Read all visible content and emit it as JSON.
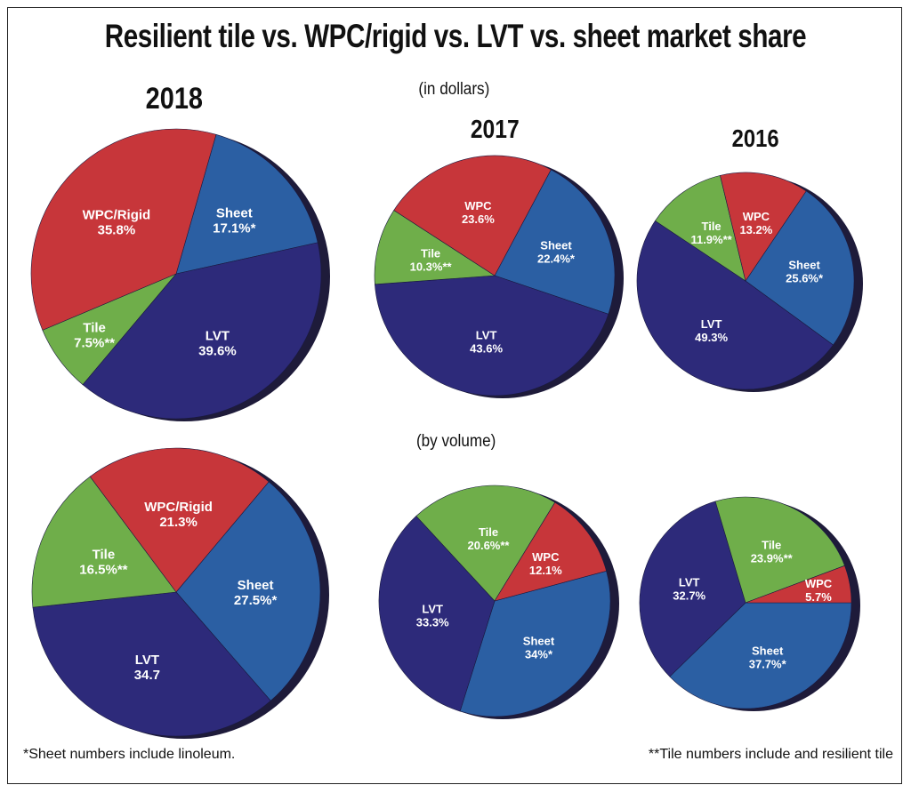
{
  "title": "Resilient tile vs. WPC/rigid vs. LVT vs. sheet market share",
  "subtitle_dollars": "(in dollars)",
  "subtitle_volume": "(by volume)",
  "years": [
    "2018",
    "2017",
    "2016"
  ],
  "footnote_sheet": "*Sheet numbers include linoleum.",
  "footnote_tile": "**Tile numbers include and resilient tile",
  "colors": {
    "Sheet": "#2b5fa3",
    "LVT": "#2d2a7a",
    "Tile": "#6fae4a",
    "WPC": "#c7363a",
    "shadow": "#1e1b3a"
  },
  "chart_data": [
    {
      "type": "pie",
      "group": "(in dollars)",
      "year": "2018",
      "slices": [
        {
          "label": "Sheet",
          "value_text": "17.1%*",
          "value": 17.1,
          "color_key": "Sheet"
        },
        {
          "label": "LVT",
          "value_text": "39.6%",
          "value": 39.6,
          "color_key": "LVT"
        },
        {
          "label": "Tile",
          "value_text": "7.5%**",
          "value": 7.5,
          "color_key": "Tile"
        },
        {
          "label": "WPC/Rigid",
          "value_text": "35.8%",
          "value": 35.8,
          "color_key": "WPC"
        }
      ]
    },
    {
      "type": "pie",
      "group": "(in dollars)",
      "year": "2017",
      "slices": [
        {
          "label": "Sheet",
          "value_text": "22.4%*",
          "value": 22.4,
          "color_key": "Sheet"
        },
        {
          "label": "LVT",
          "value_text": "43.6%",
          "value": 43.6,
          "color_key": "LVT"
        },
        {
          "label": "Tile",
          "value_text": "10.3%**",
          "value": 10.3,
          "color_key": "Tile"
        },
        {
          "label": "WPC",
          "value_text": "23.6%",
          "value": 23.6,
          "color_key": "WPC"
        }
      ]
    },
    {
      "type": "pie",
      "group": "(in dollars)",
      "year": "2016",
      "slices": [
        {
          "label": "Sheet",
          "value_text": "25.6%*",
          "value": 25.6,
          "color_key": "Sheet"
        },
        {
          "label": "LVT",
          "value_text": "49.3%",
          "value": 49.3,
          "color_key": "LVT"
        },
        {
          "label": "Tile",
          "value_text": "11.9%**",
          "value": 11.9,
          "color_key": "Tile"
        },
        {
          "label": "WPC",
          "value_text": "13.2%",
          "value": 13.2,
          "color_key": "WPC"
        }
      ]
    },
    {
      "type": "pie",
      "group": "(by volume)",
      "year": "2018",
      "slices": [
        {
          "label": "Sheet",
          "value_text": "27.5%*",
          "value": 27.5,
          "color_key": "Sheet"
        },
        {
          "label": "LVT",
          "value_text": "34.7",
          "value": 34.7,
          "color_key": "LVT"
        },
        {
          "label": "Tile",
          "value_text": "16.5%**",
          "value": 16.5,
          "color_key": "Tile"
        },
        {
          "label": "WPC/Rigid",
          "value_text": "21.3%",
          "value": 21.3,
          "color_key": "WPC"
        }
      ]
    },
    {
      "type": "pie",
      "group": "(by volume)",
      "year": "2017",
      "slices": [
        {
          "label": "Sheet",
          "value_text": "34%*",
          "value": 34,
          "color_key": "Sheet"
        },
        {
          "label": "LVT",
          "value_text": "33.3%",
          "value": 33.3,
          "color_key": "LVT"
        },
        {
          "label": "Tile",
          "value_text": "20.6%**",
          "value": 20.6,
          "color_key": "Tile"
        },
        {
          "label": "WPC",
          "value_text": "12.1%",
          "value": 12.1,
          "color_key": "WPC"
        }
      ]
    },
    {
      "type": "pie",
      "group": "(by volume)",
      "year": "2016",
      "slices": [
        {
          "label": "Sheet",
          "value_text": "37.7%*",
          "value": 37.7,
          "color_key": "Sheet"
        },
        {
          "label": "LVT",
          "value_text": "32.7%",
          "value": 32.7,
          "color_key": "LVT"
        },
        {
          "label": "Tile",
          "value_text": "23.9%**",
          "value": 23.9,
          "color_key": "Tile"
        },
        {
          "label": "WPC",
          "value_text": "5.7%",
          "value": 5.7,
          "color_key": "WPC"
        }
      ]
    }
  ]
}
